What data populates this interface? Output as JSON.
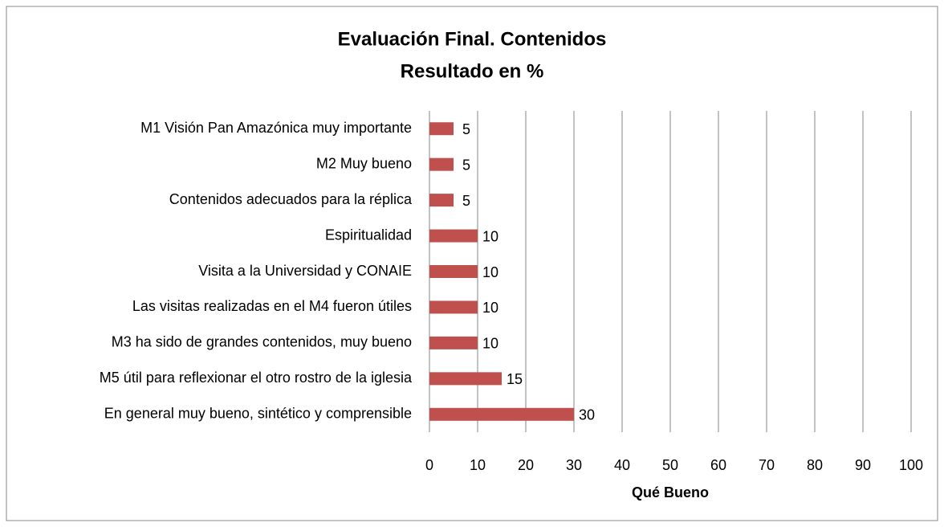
{
  "chart_data": {
    "type": "bar",
    "orientation": "horizontal",
    "title": "Evaluación Final. Contenidos",
    "subtitle": "Resultado en %",
    "x_label": "Qué Bueno",
    "categories": [
      "M1 Visión Pan Amazónica muy importante",
      "M2 Muy bueno",
      "Contenidos adecuados para la réplica",
      "Espiritualidad",
      "Visita a la Universidad y CONAIE",
      "Las visitas realizadas en el M4 fueron útiles",
      "M3 ha sido de grandes contenidos, muy bueno",
      "M5 útil para reflexionar el otro rostro de la iglesia",
      "En general muy bueno, sintético y comprensible"
    ],
    "values": [
      5,
      5,
      5,
      10,
      10,
      10,
      10,
      15,
      30
    ],
    "color": "#c0504d",
    "xlim": [
      0,
      100
    ],
    "xticks": [
      0,
      10,
      20,
      30,
      40,
      50,
      60,
      70,
      80,
      90,
      100
    ],
    "grid": true
  }
}
